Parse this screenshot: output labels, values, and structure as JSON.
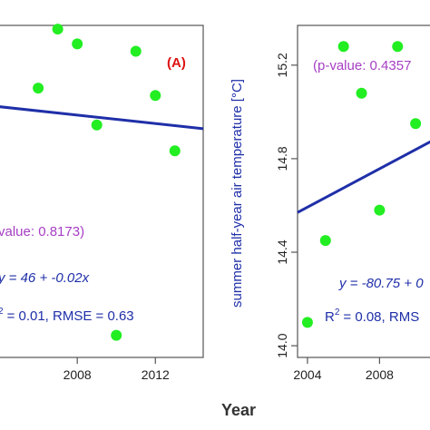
{
  "figure": {
    "xlabel": "Year",
    "colors": {
      "points": "#22ee22",
      "line": "#1f2fa8",
      "annotation": "#1f2fa8",
      "pvalue": "#a63fc4",
      "panel_tag": "#dd1111",
      "frame": "#555555"
    }
  },
  "chart_data": [
    {
      "type": "scatter",
      "panel_label": "(A)",
      "xlabel": "",
      "ylabel": "",
      "xlim": [
        2003.95,
        2014.45
      ],
      "ylim": [
        13.85,
        15.65
      ],
      "xticks": [
        2008,
        2012
      ],
      "xtick_labels": [
        "2008",
        "2012"
      ],
      "yticks": [],
      "ytick_labels": [],
      "points": [
        {
          "x": 2006,
          "y": 15.31
        },
        {
          "x": 2007,
          "y": 15.63
        },
        {
          "x": 2008,
          "y": 15.55
        },
        {
          "x": 2009,
          "y": 15.11
        },
        {
          "x": 2010,
          "y": 13.97
        },
        {
          "x": 2011,
          "y": 15.51
        },
        {
          "x": 2012,
          "y": 15.27
        },
        {
          "x": 2013,
          "y": 14.97
        }
      ],
      "fit": {
        "x": [
          2003.95,
          2014.45
        ],
        "y": [
          15.21,
          15.09
        ]
      },
      "pvalue_text": "value: 0.8173)",
      "equation_text": "y = 46 + -0.02x",
      "r2_prefix": "",
      "r2_rest": "= 0.01,  RMSE = 0.63",
      "grid": false,
      "legend": "none"
    },
    {
      "type": "scatter",
      "panel_label": "",
      "xlabel": "",
      "ylabel": "summer half-year air temperature [°C]",
      "xlim": [
        2003.45,
        2011.0
      ],
      "ylim": [
        13.95,
        15.37
      ],
      "xticks": [
        2004,
        2008
      ],
      "xtick_labels": [
        "2004",
        "2008"
      ],
      "yticks": [
        14.0,
        14.4,
        14.8,
        15.2
      ],
      "ytick_labels": [
        "14.0",
        "14.4",
        "14.8",
        "15.2"
      ],
      "points": [
        {
          "x": 2004,
          "y": 14.1
        },
        {
          "x": 2005,
          "y": 14.45
        },
        {
          "x": 2006,
          "y": 15.28
        },
        {
          "x": 2007,
          "y": 15.08
        },
        {
          "x": 2008,
          "y": 14.58
        },
        {
          "x": 2009,
          "y": 15.28
        },
        {
          "x": 2010,
          "y": 14.95
        }
      ],
      "fit": {
        "x": [
          2003.45,
          2011.0
        ],
        "y": [
          14.57,
          14.88
        ]
      },
      "pvalue_text": "(p-value: 0.4357",
      "equation_text": "y = -80.75 + 0",
      "r2_prefix": "R",
      "r2_rest": "= 0.08,  RMS",
      "grid": false,
      "legend": "none"
    }
  ]
}
